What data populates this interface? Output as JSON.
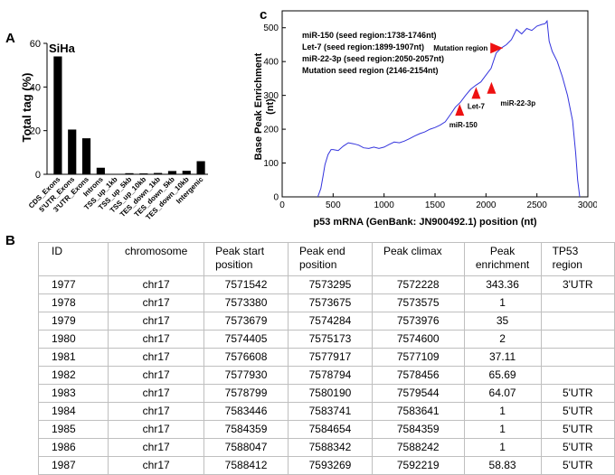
{
  "panel_a": {
    "letter": "A",
    "chart_data": {
      "type": "bar",
      "title": "SiHa",
      "xlabel": "",
      "ylabel": "Total tag (%)",
      "ylim": [
        0,
        60
      ],
      "yticks": [
        0,
        20,
        40,
        60
      ],
      "categories": [
        "CDS_Exons",
        "5'UTR_Exons",
        "3'UTR_Exons",
        "Introns",
        "TSS_up_1kb",
        "TSS_up_5kb",
        "TSS_up_10kb",
        "TES_down_1kb",
        "TES_down_5kb",
        "TES_down_10kb",
        "Intergenic"
      ],
      "values": [
        54,
        20.5,
        16.5,
        3,
        0.2,
        0.5,
        0.4,
        0.6,
        1.5,
        1.6,
        6
      ],
      "colors": {
        "bar": "#000000"
      }
    }
  },
  "panel_c": {
    "letter": "c",
    "chart_data": {
      "type": "line",
      "xlabel": "p53 mRNA (GenBank: JN900492.1) position (nt)",
      "ylabel_lines": [
        "Base Peak Enrichment",
        "(nt)"
      ],
      "xlim": [
        0,
        3000
      ],
      "ylim": [
        0,
        550
      ],
      "xticks": [
        0,
        500,
        1000,
        1500,
        2000,
        2500,
        3000
      ],
      "yticks": [
        0,
        100,
        200,
        300,
        400,
        500
      ],
      "series": [
        {
          "x": [
            350,
            380,
            400,
            420,
            450,
            480,
            500,
            550,
            600,
            650,
            700,
            750,
            800,
            850,
            900,
            950,
            1000,
            1050,
            1100,
            1150,
            1200,
            1250,
            1300,
            1350,
            1400,
            1450,
            1500,
            1550,
            1600,
            1650,
            1700,
            1750,
            1800,
            1850,
            1900,
            1950,
            2000,
            2050,
            2100,
            2150,
            2200,
            2250,
            2300,
            2350,
            2400,
            2450,
            2500,
            2550,
            2580,
            2600,
            2620,
            2650,
            2700,
            2750,
            2800,
            2850,
            2880,
            2900,
            2920
          ],
          "y": [
            0,
            25,
            60,
            95,
            125,
            140,
            140,
            137,
            150,
            160,
            157,
            153,
            145,
            143,
            147,
            143,
            147,
            155,
            162,
            160,
            165,
            172,
            180,
            187,
            192,
            200,
            205,
            212,
            222,
            243,
            265,
            280,
            300,
            318,
            330,
            340,
            360,
            380,
            425,
            440,
            450,
            465,
            495,
            482,
            498,
            492,
            505,
            510,
            512,
            520,
            460,
            430,
            400,
            355,
            300,
            225,
            130,
            50,
            0
          ],
          "color": "#3333dd"
        }
      ],
      "legend_lines": [
        "miR-150 (seed region:1738-1746nt)",
        "Let-7 (seed region:1899-1907nt)",
        "miR-22-3p (seed region:2050-2057nt)",
        "Mutation seed region (2146-2154nt)"
      ],
      "annotations": [
        {
          "label": "miR-150",
          "x": 1742,
          "y": 240
        },
        {
          "label": "Let-7",
          "x": 1903,
          "y": 290
        },
        {
          "label": "miR-22-3p",
          "x": 2054,
          "y": 305
        },
        {
          "label": "Mutation region",
          "x": 2150,
          "y": 440
        }
      ],
      "colors": {
        "marker": "#ee1111"
      }
    }
  },
  "panel_b": {
    "letter": "B",
    "chart_data": {
      "type": "table",
      "headers": [
        {
          "lines": [
            "ID"
          ]
        },
        {
          "lines": [
            "chromosome"
          ]
        },
        {
          "lines": [
            "Peak start",
            "position"
          ]
        },
        {
          "lines": [
            "Peak end",
            "position"
          ]
        },
        {
          "lines": [
            "Peak climax"
          ]
        },
        {
          "lines": [
            "Peak",
            "enrichment"
          ]
        },
        {
          "lines": [
            "TP53 region"
          ]
        }
      ],
      "rows": [
        [
          "1977",
          "chr17",
          "7571542",
          "7573295",
          "7572228",
          "343.36",
          "3'UTR"
        ],
        [
          "1978",
          "chr17",
          "7573380",
          "7573675",
          "7573575",
          "1",
          ""
        ],
        [
          "1979",
          "chr17",
          "7573679",
          "7574284",
          "7573976",
          "35",
          ""
        ],
        [
          "1980",
          "chr17",
          "7574405",
          "7575173",
          "7574600",
          "2",
          ""
        ],
        [
          "1981",
          "chr17",
          "7576608",
          "7577917",
          "7577109",
          "37.11",
          ""
        ],
        [
          "1982",
          "chr17",
          "7577930",
          "7578794",
          "7578456",
          "65.69",
          ""
        ],
        [
          "1983",
          "chr17",
          "7578799",
          "7580190",
          "7579544",
          "64.07",
          "5'UTR"
        ],
        [
          "1984",
          "chr17",
          "7583446",
          "7583741",
          "7583641",
          "1",
          "5'UTR"
        ],
        [
          "1985",
          "chr17",
          "7584359",
          "7584654",
          "7584359",
          "1",
          "5'UTR"
        ],
        [
          "1986",
          "chr17",
          "7588047",
          "7588342",
          "7588242",
          "1",
          "5'UTR"
        ],
        [
          "1987",
          "chr17",
          "7588412",
          "7593269",
          "7592219",
          "58.83",
          "5'UTR"
        ]
      ]
    }
  }
}
